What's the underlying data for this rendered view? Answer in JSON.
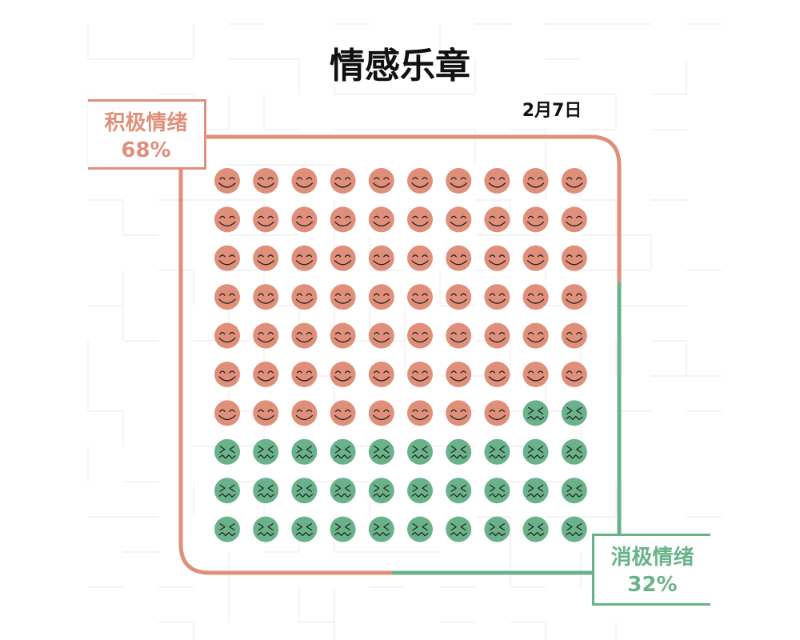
{
  "title": "情感乐章",
  "date": "2月7日",
  "colors": {
    "positive": "#e0907a",
    "negative": "#6ab38a",
    "face_line": "#222222"
  },
  "chart_data": {
    "type": "waffle",
    "title": "情感乐章",
    "subtitle": "2月7日",
    "rows": 10,
    "cols": 10,
    "total": 100,
    "series": [
      {
        "name": "积极情绪",
        "value": 68,
        "label": "68%",
        "icon": "smiling-face-icon",
        "color": "#e0907a"
      },
      {
        "name": "消极情绪",
        "value": 32,
        "label": "32%",
        "icon": "nauseated-face-icon",
        "color": "#6ab38a"
      }
    ]
  }
}
